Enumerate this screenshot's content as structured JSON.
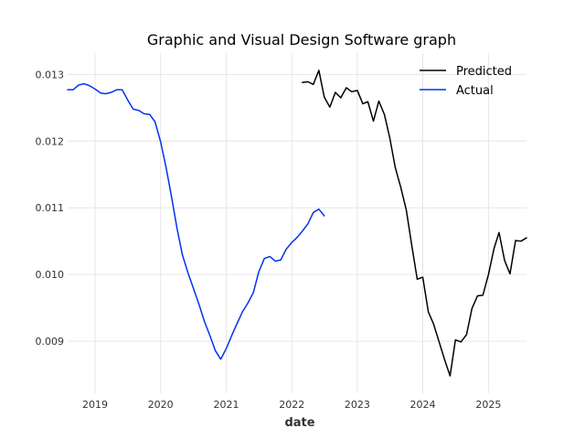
{
  "chart_data": {
    "type": "line",
    "title": "Graphic and Visual Design Software graph",
    "xlabel": "date",
    "ylabel": "",
    "x_type": "date",
    "xlim": [
      "2018-08-01",
      "2025-08-01"
    ],
    "ylim": [
      0.00822,
      0.01332
    ],
    "x_ticks": [
      {
        "date": "2019-01-01",
        "label": "2019"
      },
      {
        "date": "2020-01-01",
        "label": "2020"
      },
      {
        "date": "2021-01-01",
        "label": "2021"
      },
      {
        "date": "2022-01-01",
        "label": "2022"
      },
      {
        "date": "2023-01-01",
        "label": "2023"
      },
      {
        "date": "2024-01-01",
        "label": "2024"
      },
      {
        "date": "2025-01-01",
        "label": "2025"
      }
    ],
    "y_ticks": [
      {
        "value": 0.009,
        "label": "0.009"
      },
      {
        "value": 0.01,
        "label": "0.010"
      },
      {
        "value": 0.011,
        "label": "0.011"
      },
      {
        "value": 0.012,
        "label": "0.012"
      },
      {
        "value": 0.013,
        "label": "0.013"
      }
    ],
    "grid": true,
    "legend": {
      "position": "top-right"
    },
    "series": [
      {
        "name": "Predicted",
        "color": "#000000",
        "points": [
          [
            "2022-03-01",
            0.01288
          ],
          [
            "2022-04-01",
            0.01289
          ],
          [
            "2022-05-01",
            0.01285
          ],
          [
            "2022-06-01",
            0.01306
          ],
          [
            "2022-07-01",
            0.01266
          ],
          [
            "2022-08-01",
            0.01251
          ],
          [
            "2022-09-01",
            0.01273
          ],
          [
            "2022-10-01",
            0.01265
          ],
          [
            "2022-11-01",
            0.0128
          ],
          [
            "2022-12-01",
            0.01274
          ],
          [
            "2023-01-01",
            0.01276
          ],
          [
            "2023-02-01",
            0.01256
          ],
          [
            "2023-03-01",
            0.01259
          ],
          [
            "2023-04-01",
            0.0123
          ],
          [
            "2023-05-01",
            0.0126
          ],
          [
            "2023-06-01",
            0.0124
          ],
          [
            "2023-07-01",
            0.01205
          ],
          [
            "2023-08-01",
            0.0116
          ],
          [
            "2023-09-01",
            0.0113
          ],
          [
            "2023-10-01",
            0.01097
          ],
          [
            "2023-11-01",
            0.01043
          ],
          [
            "2023-12-01",
            0.00993
          ],
          [
            "2024-01-01",
            0.00996
          ],
          [
            "2024-02-01",
            0.00944
          ],
          [
            "2024-03-01",
            0.00926
          ],
          [
            "2024-04-01",
            0.00899
          ],
          [
            "2024-05-01",
            0.00873
          ],
          [
            "2024-06-01",
            0.00848
          ],
          [
            "2024-07-01",
            0.00902
          ],
          [
            "2024-08-01",
            0.00899
          ],
          [
            "2024-09-01",
            0.0091
          ],
          [
            "2024-10-01",
            0.00949
          ],
          [
            "2024-11-01",
            0.00968
          ],
          [
            "2024-12-01",
            0.00969
          ],
          [
            "2025-01-01",
            0.01
          ],
          [
            "2025-02-01",
            0.01039
          ],
          [
            "2025-03-01",
            0.01063
          ],
          [
            "2025-04-01",
            0.01021
          ],
          [
            "2025-05-01",
            0.01001
          ],
          [
            "2025-06-01",
            0.01051
          ],
          [
            "2025-07-01",
            0.0105
          ],
          [
            "2025-08-01",
            0.01055
          ]
        ]
      },
      {
        "name": "Actual",
        "color": "#0033ee",
        "points": [
          [
            "2018-08-01",
            0.01277
          ],
          [
            "2018-09-01",
            0.01277
          ],
          [
            "2018-10-01",
            0.01284
          ],
          [
            "2018-11-01",
            0.01286
          ],
          [
            "2018-12-01",
            0.01283
          ],
          [
            "2019-01-01",
            0.01278
          ],
          [
            "2019-02-01",
            0.01272
          ],
          [
            "2019-03-01",
            0.01271
          ],
          [
            "2019-04-01",
            0.01273
          ],
          [
            "2019-05-01",
            0.01277
          ],
          [
            "2019-06-01",
            0.01277
          ],
          [
            "2019-07-01",
            0.01262
          ],
          [
            "2019-08-01",
            0.01248
          ],
          [
            "2019-09-01",
            0.01246
          ],
          [
            "2019-10-01",
            0.01241
          ],
          [
            "2019-11-01",
            0.0124
          ],
          [
            "2019-12-01",
            0.01229
          ],
          [
            "2020-01-01",
            0.01199
          ],
          [
            "2020-02-01",
            0.0116
          ],
          [
            "2020-03-01",
            0.01118
          ],
          [
            "2020-04-01",
            0.0107
          ],
          [
            "2020-05-01",
            0.0103
          ],
          [
            "2020-06-01",
            0.01003
          ],
          [
            "2020-07-01",
            0.0098
          ],
          [
            "2020-08-01",
            0.00956
          ],
          [
            "2020-09-01",
            0.0093
          ],
          [
            "2020-10-01",
            0.00909
          ],
          [
            "2020-11-01",
            0.00886
          ],
          [
            "2020-12-01",
            0.00873
          ],
          [
            "2021-01-01",
            0.00889
          ],
          [
            "2021-02-01",
            0.00909
          ],
          [
            "2021-03-01",
            0.00926
          ],
          [
            "2021-04-01",
            0.00944
          ],
          [
            "2021-05-01",
            0.00957
          ],
          [
            "2021-06-01",
            0.00973
          ],
          [
            "2021-07-01",
            0.01004
          ],
          [
            "2021-08-01",
            0.01024
          ],
          [
            "2021-09-01",
            0.01027
          ],
          [
            "2021-10-01",
            0.0102
          ],
          [
            "2021-11-01",
            0.01022
          ],
          [
            "2021-12-01",
            0.01038
          ],
          [
            "2022-01-01",
            0.01048
          ],
          [
            "2022-02-01",
            0.01056
          ],
          [
            "2022-03-01",
            0.01065
          ],
          [
            "2022-04-01",
            0.01076
          ],
          [
            "2022-05-01",
            0.01093
          ],
          [
            "2022-06-01",
            0.01098
          ],
          [
            "2022-07-01",
            0.01088
          ]
        ]
      }
    ]
  }
}
